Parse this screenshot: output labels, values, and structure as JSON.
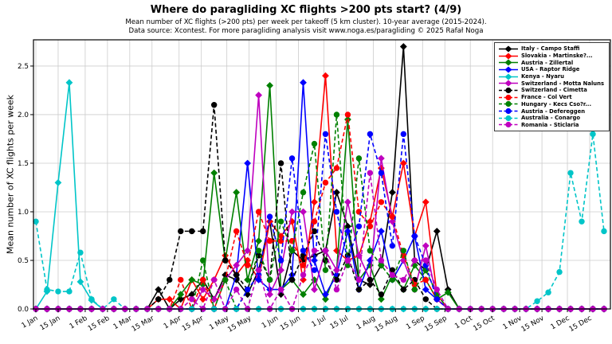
{
  "header": {
    "title": "Where do paragliding XC flights >200 pts start? (4/9)",
    "subtitle_line1": "Mean number of XC flights (>200 pts) per week per takeoff (5 km cluster). 10-year average (2015-2024).",
    "subtitle_line2": "Data source: Xcontest. For more paragliding analysis visit www.noga.es/paragliding © 2025 Rafał Noga"
  },
  "chart_data": {
    "type": "line",
    "title": "Where do paragliding XC flights >200 pts start? (4/9)",
    "ylabel": "Mean number of XC flights per week",
    "ylim": [
      0,
      2.77
    ],
    "yticks": [
      0,
      0.5,
      1.0,
      1.5,
      2.0,
      2.5
    ],
    "ytick_labels": [
      "0.0",
      "0.5",
      "1.0",
      "1.5",
      "2.0",
      "2.5"
    ],
    "grid": true,
    "legend_position": "upper right",
    "x_unit": "52 weekly values per series, week 0 = 1 Jan",
    "xticks_days": [
      0,
      14,
      31,
      45,
      59,
      73,
      90,
      104,
      120,
      134,
      151,
      165,
      181,
      195,
      212,
      226,
      243,
      257,
      273,
      287,
      304,
      318,
      334,
      348
    ],
    "xtick_labels": [
      "1 Jan",
      "15 Jan",
      "1 Feb",
      "15 Feb",
      "1 Mar",
      "15 Mar",
      "1 Apr",
      "15 Apr",
      "1 May",
      "15 May",
      "1 Jun",
      "15 Jun",
      "1 Jul",
      "15 Jul",
      "1 Aug",
      "15 Aug",
      "1 Sep",
      "15 Sep",
      "1 Oct",
      "15 Oct",
      "1 Nov",
      "15 Nov",
      "1 Dec",
      "15 Dec"
    ],
    "series": [
      {
        "name": "Italy - Campo Staffi",
        "color": "#000000",
        "line_style": "solid",
        "marker": "diamond",
        "values": [
          0,
          0,
          0,
          0,
          0,
          0,
          0,
          0,
          0,
          0,
          0,
          0.2,
          0,
          0.1,
          0.15,
          0.3,
          0.1,
          0.35,
          0.3,
          0.15,
          0.4,
          0.9,
          0.15,
          0.6,
          0.5,
          0.55,
          0.6,
          1.2,
          0.85,
          0.3,
          0.25,
          0.45,
          1.2,
          2.7,
          0.5,
          0.4,
          0.8,
          0.2,
          0,
          0,
          0,
          0,
          0,
          0,
          0,
          0,
          0,
          0,
          0,
          0,
          0,
          0
        ]
      },
      {
        "name": "Slovakia - Martinske?...",
        "color": "#ff0000",
        "line_style": "solid",
        "marker": "diamond",
        "values": [
          0,
          0,
          0,
          0,
          0,
          0,
          0,
          0,
          0,
          0,
          0,
          0.1,
          0.1,
          0,
          0.3,
          0.1,
          0.3,
          0.55,
          0.35,
          0.5,
          0.3,
          0.9,
          0.75,
          0.9,
          0.3,
          1.1,
          2.4,
          0.6,
          0.5,
          0.55,
          0.9,
          1.45,
          0.95,
          1.5,
          0.75,
          1.1,
          0.15,
          0,
          0,
          0,
          0,
          0,
          0,
          0,
          0,
          0,
          0,
          0,
          0,
          0,
          0,
          0
        ]
      },
      {
        "name": "Austria - Zillertal",
        "color": "#008000",
        "line_style": "solid",
        "marker": "diamond",
        "values": [
          0,
          0,
          0,
          0,
          0,
          0,
          0,
          0,
          0,
          0,
          0,
          0,
          0,
          0.15,
          0.3,
          0.25,
          1.4,
          0.5,
          1.2,
          0.3,
          0.7,
          2.3,
          0.2,
          0.3,
          0.15,
          0.3,
          0.1,
          0.4,
          1.95,
          0.3,
          0.45,
          0.1,
          0.35,
          0.2,
          0.45,
          0.3,
          0.1,
          0.17,
          0,
          0,
          0,
          0,
          0,
          0,
          0,
          0,
          0,
          0,
          0,
          0,
          0,
          0
        ]
      },
      {
        "name": "USA - Raptor Ridge",
        "color": "#0000ff",
        "line_style": "solid",
        "marker": "diamond",
        "values": [
          0,
          0,
          0,
          0,
          0,
          0,
          0,
          0,
          0,
          0,
          0,
          0,
          0,
          0,
          0,
          0,
          0,
          0,
          0.35,
          1.5,
          0.3,
          0.2,
          0.2,
          0.35,
          2.33,
          0.5,
          0.15,
          0.35,
          0.8,
          0.2,
          0.5,
          0.8,
          0.3,
          0.5,
          0.75,
          0.2,
          0.1,
          0,
          0,
          0,
          0,
          0,
          0,
          0,
          0,
          0,
          0,
          0,
          0,
          0,
          0,
          0
        ]
      },
      {
        "name": "Kenya - Nyaru",
        "color": "#00c5c8",
        "line_style": "solid",
        "marker": "diamond",
        "values": [
          0,
          0.18,
          1.3,
          2.33,
          0.28,
          0.09,
          0,
          0,
          0,
          0,
          0,
          0,
          0,
          0,
          0,
          0,
          0,
          0,
          0,
          0,
          0,
          0,
          0,
          0,
          0,
          0,
          0,
          0,
          0,
          0,
          0,
          0,
          0,
          0,
          0,
          0,
          0,
          0,
          0,
          0,
          0,
          0,
          0,
          0,
          0,
          0,
          0,
          0,
          0,
          0,
          0,
          0
        ]
      },
      {
        "name": "Switzerland - Motta Naluns",
        "color": "#bf00bf",
        "line_style": "solid",
        "marker": "diamond",
        "values": [
          0,
          0,
          0,
          0,
          0,
          0,
          0,
          0,
          0,
          0,
          0,
          0,
          0,
          0,
          0,
          0.2,
          0.1,
          0.3,
          0.45,
          0.6,
          2.2,
          0.15,
          0.4,
          1.0,
          1.0,
          0.2,
          0.6,
          0.4,
          1.1,
          0.55,
          0.3,
          1.55,
          0.9,
          0.5,
          0.2,
          0.65,
          0.1,
          0,
          0,
          0,
          0,
          0,
          0,
          0,
          0,
          0,
          0,
          0,
          0,
          0,
          0,
          0
        ]
      },
      {
        "name": "Switzerland - Cimetta",
        "color": "#000000",
        "line_style": "dashed",
        "marker": "circle",
        "values": [
          0,
          0,
          0,
          0,
          0,
          0,
          0,
          0,
          0,
          0,
          0,
          0.1,
          0.3,
          0.8,
          0.8,
          0.8,
          2.1,
          0.5,
          0.35,
          0.2,
          0.55,
          0.3,
          1.5,
          0.3,
          0.55,
          0.8,
          0.5,
          0.3,
          0.55,
          0.2,
          0.3,
          0.15,
          0.4,
          0.2,
          0.3,
          0.1,
          0,
          0,
          0,
          0,
          0,
          0,
          0,
          0,
          0,
          0,
          0,
          0,
          0,
          0,
          0,
          0
        ]
      },
      {
        "name": "France - Col Vert",
        "color": "#ff0000",
        "line_style": "dashed",
        "marker": "circle",
        "values": [
          0,
          0,
          0,
          0,
          0,
          0,
          0,
          0,
          0,
          0,
          0,
          0,
          0,
          0.3,
          0,
          0.3,
          0,
          0.3,
          0.8,
          0.45,
          1.0,
          0.7,
          0.7,
          0.7,
          0.45,
          0.9,
          1.3,
          1.45,
          2.0,
          1.0,
          0.85,
          1.1,
          0.95,
          0.55,
          0.25,
          0.3,
          0.1,
          0,
          0,
          0,
          0,
          0,
          0,
          0,
          0,
          0,
          0,
          0,
          0,
          0,
          0,
          0
        ]
      },
      {
        "name": "Hungary - Kecs Cso?r...",
        "color": "#008000",
        "line_style": "dashed",
        "marker": "circle",
        "values": [
          0,
          0,
          0,
          0,
          0,
          0,
          0,
          0,
          0,
          0,
          0,
          0,
          0,
          0,
          0,
          0.5,
          0,
          0.3,
          0,
          0.2,
          0.6,
          0.3,
          0.9,
          0.6,
          1.2,
          1.7,
          0.4,
          2.0,
          0.45,
          1.55,
          0.6,
          0.45,
          0.3,
          0.6,
          0.2,
          0.4,
          0.15,
          0,
          0,
          0,
          0,
          0,
          0,
          0,
          0,
          0,
          0,
          0,
          0,
          0,
          0,
          0
        ]
      },
      {
        "name": "Austria - Defereggen",
        "color": "#0000ff",
        "line_style": "dashed",
        "marker": "circle",
        "values": [
          0,
          0,
          0,
          0,
          0,
          0,
          0,
          0,
          0,
          0,
          0,
          0,
          0,
          0,
          0,
          0,
          0,
          0,
          0,
          0.2,
          0.35,
          0.95,
          0.5,
          1.55,
          0.6,
          0.4,
          1.8,
          1.0,
          0.5,
          0.85,
          1.8,
          1.4,
          0.65,
          1.8,
          0.75,
          0.45,
          0.1,
          0,
          0,
          0,
          0,
          0,
          0,
          0,
          0,
          0,
          0,
          0,
          0,
          0,
          0,
          0
        ]
      },
      {
        "name": "Australia - Conargo",
        "color": "#00c5c8",
        "line_style": "dashed",
        "marker": "circle",
        "values": [
          0.9,
          0.2,
          0.18,
          0.18,
          0.58,
          0.1,
          0,
          0.1,
          0,
          0,
          0,
          0,
          0,
          0,
          0,
          0,
          0,
          0,
          0,
          0,
          0,
          0,
          0,
          0,
          0,
          0,
          0,
          0,
          0,
          0,
          0,
          0,
          0,
          0,
          0,
          0,
          0,
          0,
          0,
          0,
          0,
          0,
          0,
          0,
          0,
          0.08,
          0.17,
          0.38,
          1.4,
          0.9,
          1.8,
          0.8
        ]
      },
      {
        "name": "Romania - Sticlaria",
        "color": "#bf00bf",
        "line_style": "dashed",
        "marker": "circle",
        "values": [
          0,
          0,
          0,
          0,
          0,
          0,
          0,
          0,
          0,
          0,
          0,
          0,
          0,
          0,
          0.1,
          0,
          0.3,
          0,
          0.2,
          0,
          0.4,
          0,
          0.2,
          0,
          0.35,
          0.6,
          0.6,
          0.2,
          0.5,
          0.3,
          1.4,
          0.5,
          0.35,
          0.3,
          0.5,
          0.5,
          0.2,
          0,
          0,
          0,
          0,
          0,
          0,
          0,
          0,
          0,
          0,
          0,
          0,
          0,
          0,
          0
        ]
      }
    ]
  }
}
